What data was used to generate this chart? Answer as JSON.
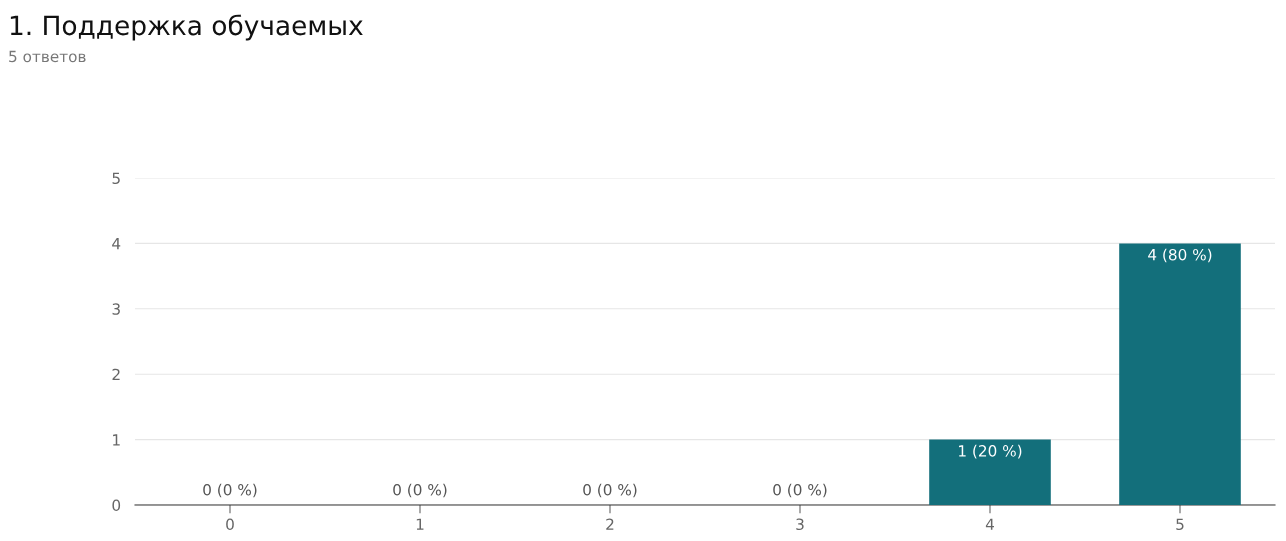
{
  "chart_data": {
    "type": "bar",
    "title": "1. Поддержка обучаемых",
    "subtitle": "5 ответов",
    "categories": [
      "0",
      "1",
      "2",
      "3",
      "4",
      "5"
    ],
    "values": [
      0,
      0,
      0,
      0,
      1,
      4
    ],
    "value_labels": [
      "0 (0 %)",
      "0 (0 %)",
      "0 (0 %)",
      "0 (0 %)",
      "1 (20 %)",
      "4 (80 %)"
    ],
    "color": "#136f7b",
    "ylim": [
      0,
      5
    ],
    "yticks": [
      0,
      1,
      2,
      3,
      4,
      5
    ],
    "grid": "y",
    "legend": false
  }
}
